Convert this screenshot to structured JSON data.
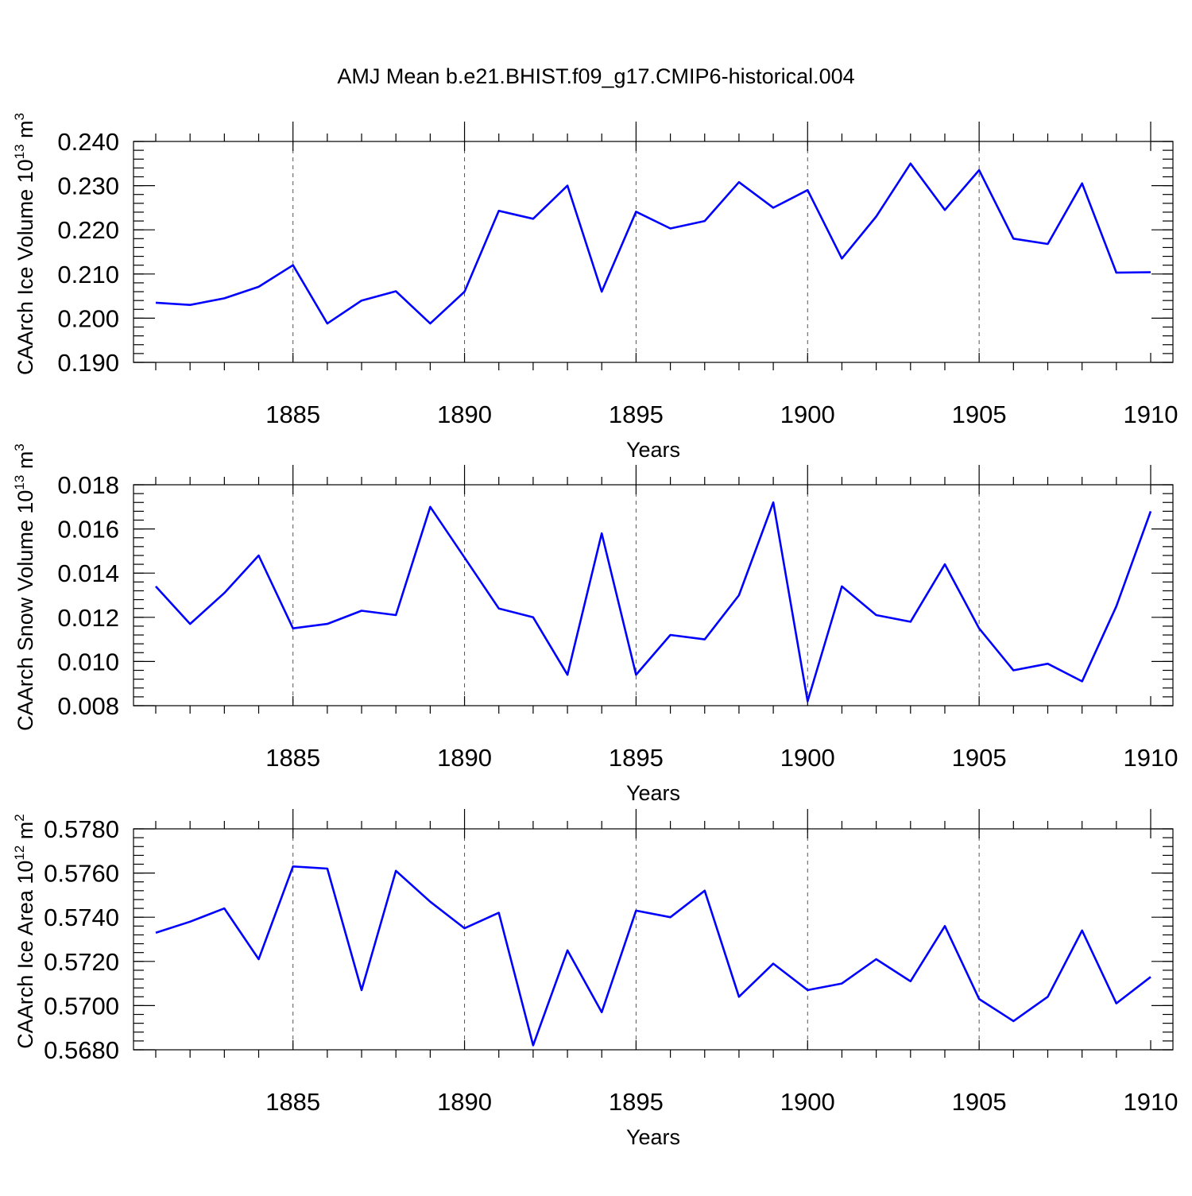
{
  "title": "AMJ Mean b.e21.BHIST.f09_g17.CMIP6-historical.004",
  "colors": {
    "line": "#0000ff",
    "axis": "#000000",
    "grid": "#555555"
  },
  "chart_data": [
    {
      "type": "line",
      "name": "ice-volume",
      "xlabel": "Years",
      "ylabel": "CAArch Ice Volume",
      "ylabel_suffix": "10",
      "ylabel_exp": "13",
      "ylabel_unit": "m",
      "ylabel_unit_exp": "3",
      "xlim": [
        1881,
        1910
      ],
      "ylim": [
        0.19,
        0.24
      ],
      "x_major_ticks": [
        1885,
        1890,
        1895,
        1900,
        1905,
        1910
      ],
      "x_tick_labels": [
        "1885",
        "1890",
        "1895",
        "1900",
        "1905",
        "1910"
      ],
      "y_major_ticks": [
        0.19,
        0.2,
        0.21,
        0.22,
        0.23,
        0.24
      ],
      "y_tick_labels": [
        "0.190",
        "0.200",
        "0.210",
        "0.220",
        "0.230",
        "0.240"
      ],
      "y_minor_step": 0.002,
      "x": [
        1881,
        1882,
        1883,
        1884,
        1885,
        1886,
        1887,
        1888,
        1889,
        1890,
        1891,
        1892,
        1893,
        1894,
        1895,
        1896,
        1897,
        1898,
        1899,
        1900,
        1901,
        1902,
        1903,
        1904,
        1905,
        1906,
        1907,
        1908,
        1909,
        1910
      ],
      "values": [
        0.2035,
        0.203,
        0.2045,
        0.2071,
        0.212,
        0.1988,
        0.204,
        0.2061,
        0.1988,
        0.206,
        0.2243,
        0.2225,
        0.23,
        0.206,
        0.2241,
        0.2203,
        0.222,
        0.2308,
        0.225,
        0.229,
        0.2135,
        0.223,
        0.235,
        0.2245,
        0.2335,
        0.218,
        0.2168,
        0.2305,
        0.2103,
        0.2104
      ]
    },
    {
      "type": "line",
      "name": "snow-volume",
      "xlabel": "Years",
      "ylabel": "CAArch Snow Volume",
      "ylabel_suffix": "10",
      "ylabel_exp": "13",
      "ylabel_unit": "m",
      "ylabel_unit_exp": "3",
      "xlim": [
        1881,
        1910
      ],
      "ylim": [
        0.008,
        0.018
      ],
      "x_major_ticks": [
        1885,
        1890,
        1895,
        1900,
        1905,
        1910
      ],
      "x_tick_labels": [
        "1885",
        "1890",
        "1895",
        "1900",
        "1905",
        "1910"
      ],
      "y_major_ticks": [
        0.008,
        0.01,
        0.012,
        0.014,
        0.016,
        0.018
      ],
      "y_tick_labels": [
        "0.008",
        "0.010",
        "0.012",
        "0.014",
        "0.016",
        "0.018"
      ],
      "y_minor_step": 0.0004,
      "x": [
        1881,
        1882,
        1883,
        1884,
        1885,
        1886,
        1887,
        1888,
        1889,
        1890,
        1891,
        1892,
        1893,
        1894,
        1895,
        1896,
        1897,
        1898,
        1899,
        1900,
        1901,
        1902,
        1903,
        1904,
        1905,
        1906,
        1907,
        1908,
        1909,
        1910
      ],
      "values": [
        0.0134,
        0.0117,
        0.0131,
        0.0148,
        0.0115,
        0.0117,
        0.0123,
        0.0121,
        0.017,
        0.0147,
        0.0124,
        0.012,
        0.0094,
        0.0158,
        0.0094,
        0.0112,
        0.011,
        0.013,
        0.0172,
        0.0082,
        0.0134,
        0.0121,
        0.0118,
        0.0144,
        0.0115,
        0.0096,
        0.0099,
        0.0091,
        0.0125,
        0.0168
      ]
    },
    {
      "type": "line",
      "name": "ice-area",
      "xlabel": "Years",
      "ylabel": "CAArch Ice Area",
      "ylabel_suffix": "10",
      "ylabel_exp": "12",
      "ylabel_unit": "m",
      "ylabel_unit_exp": "2",
      "xlim": [
        1881,
        1910
      ],
      "ylim": [
        0.568,
        0.578
      ],
      "x_major_ticks": [
        1885,
        1890,
        1895,
        1900,
        1905,
        1910
      ],
      "x_tick_labels": [
        "1885",
        "1890",
        "1895",
        "1900",
        "1905",
        "1910"
      ],
      "y_major_ticks": [
        0.568,
        0.57,
        0.572,
        0.574,
        0.576,
        0.578
      ],
      "y_tick_labels": [
        "0.5680",
        "0.5700",
        "0.5720",
        "0.5740",
        "0.5760",
        "0.5780"
      ],
      "y_minor_step": 0.0004,
      "x": [
        1881,
        1882,
        1883,
        1884,
        1885,
        1886,
        1887,
        1888,
        1889,
        1890,
        1891,
        1892,
        1893,
        1894,
        1895,
        1896,
        1897,
        1898,
        1899,
        1900,
        1901,
        1902,
        1903,
        1904,
        1905,
        1906,
        1907,
        1908,
        1909,
        1910
      ],
      "values": [
        0.5733,
        0.5738,
        0.5744,
        0.5721,
        0.5763,
        0.5762,
        0.5707,
        0.5761,
        0.5747,
        0.5735,
        0.5742,
        0.5682,
        0.5725,
        0.5697,
        0.5743,
        0.574,
        0.5752,
        0.5704,
        0.5719,
        0.5707,
        0.571,
        0.5721,
        0.5711,
        0.5736,
        0.5703,
        0.5693,
        0.5704,
        0.5734,
        0.5701,
        0.5713
      ]
    }
  ]
}
